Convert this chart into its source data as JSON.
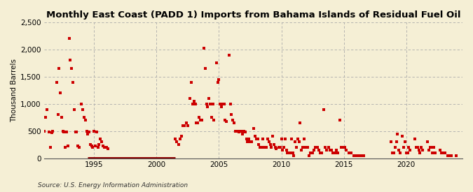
{
  "title": "Monthly East Coast (PADD 1) Imports from Bahama Islands of Residual Fuel Oil",
  "ylabel": "Thousand Barrels",
  "source": "Source: U.S. Energy Information Administration",
  "background_color": "#f5efd5",
  "plot_bg_color": "#f5efd5",
  "marker_color": "#cc0000",
  "line_color": "#8b0000",
  "ylim": [
    0,
    2500
  ],
  "yticks": [
    0,
    500,
    1000,
    1500,
    2000,
    2500
  ],
  "ytick_labels": [
    "0",
    "500",
    "1,000",
    "1,500",
    "2,000",
    "2,500"
  ],
  "xlim_start": 1991.0,
  "xlim_end": 2024.5,
  "xticks": [
    1995,
    2000,
    2005,
    2010,
    2015,
    2020
  ],
  "zero_line_x_start": 1994.5,
  "zero_line_x_end": 2001.5,
  "data": [
    [
      1991.0,
      500
    ],
    [
      1991.1,
      750
    ],
    [
      1991.2,
      900
    ],
    [
      1991.4,
      480
    ],
    [
      1991.5,
      200
    ],
    [
      1991.6,
      470
    ],
    [
      1991.7,
      500
    ],
    [
      1992.0,
      1400
    ],
    [
      1992.1,
      800
    ],
    [
      1992.2,
      1650
    ],
    [
      1992.3,
      1200
    ],
    [
      1992.4,
      750
    ],
    [
      1992.5,
      500
    ],
    [
      1992.6,
      480
    ],
    [
      1992.7,
      200
    ],
    [
      1992.8,
      480
    ],
    [
      1992.9,
      220
    ],
    [
      1993.0,
      2200
    ],
    [
      1993.1,
      1800
    ],
    [
      1993.2,
      1650
    ],
    [
      1993.3,
      1400
    ],
    [
      1993.4,
      900
    ],
    [
      1993.5,
      480
    ],
    [
      1993.6,
      480
    ],
    [
      1993.7,
      230
    ],
    [
      1993.8,
      200
    ],
    [
      1994.0,
      1000
    ],
    [
      1994.1,
      900
    ],
    [
      1994.2,
      750
    ],
    [
      1994.3,
      700
    ],
    [
      1994.4,
      500
    ],
    [
      1994.5,
      450
    ],
    [
      1994.6,
      480
    ],
    [
      1994.7,
      250
    ],
    [
      1994.8,
      220
    ],
    [
      1994.9,
      200
    ],
    [
      1995.0,
      500
    ],
    [
      1995.1,
      230
    ],
    [
      1995.2,
      480
    ],
    [
      1995.3,
      200
    ],
    [
      1995.4,
      250
    ],
    [
      1995.5,
      350
    ],
    [
      1995.6,
      300
    ],
    [
      1995.7,
      220
    ],
    [
      1995.8,
      200
    ],
    [
      1995.9,
      200
    ],
    [
      1996.0,
      200
    ],
    [
      1996.1,
      180
    ],
    [
      2001.5,
      350
    ],
    [
      2001.6,
      300
    ],
    [
      2001.8,
      250
    ],
    [
      2001.9,
      350
    ],
    [
      2002.0,
      400
    ],
    [
      2002.1,
      600
    ],
    [
      2002.2,
      600
    ],
    [
      2002.4,
      650
    ],
    [
      2002.5,
      600
    ],
    [
      2002.7,
      1100
    ],
    [
      2002.8,
      1400
    ],
    [
      2002.9,
      1000
    ],
    [
      2003.0,
      1050
    ],
    [
      2003.1,
      1000
    ],
    [
      2003.2,
      650
    ],
    [
      2003.3,
      650
    ],
    [
      2003.4,
      750
    ],
    [
      2003.5,
      700
    ],
    [
      2003.6,
      700
    ],
    [
      2003.8,
      2020
    ],
    [
      2003.9,
      1650
    ],
    [
      2004.0,
      1000
    ],
    [
      2004.1,
      950
    ],
    [
      2004.2,
      1100
    ],
    [
      2004.3,
      1000
    ],
    [
      2004.4,
      750
    ],
    [
      2004.5,
      1000
    ],
    [
      2004.6,
      700
    ],
    [
      2004.8,
      1750
    ],
    [
      2004.9,
      1400
    ],
    [
      2005.0,
      1450
    ],
    [
      2005.1,
      1000
    ],
    [
      2005.2,
      950
    ],
    [
      2005.3,
      1000
    ],
    [
      2005.4,
      1000
    ],
    [
      2005.5,
      700
    ],
    [
      2005.6,
      680
    ],
    [
      2005.8,
      1900
    ],
    [
      2005.9,
      1000
    ],
    [
      2006.0,
      800
    ],
    [
      2006.1,
      700
    ],
    [
      2006.2,
      650
    ],
    [
      2006.3,
      500
    ],
    [
      2006.4,
      500
    ],
    [
      2006.5,
      500
    ],
    [
      2006.6,
      480
    ],
    [
      2006.7,
      500
    ],
    [
      2006.8,
      500
    ],
    [
      2006.9,
      450
    ],
    [
      2007.0,
      500
    ],
    [
      2007.1,
      480
    ],
    [
      2007.2,
      350
    ],
    [
      2007.3,
      300
    ],
    [
      2007.4,
      350
    ],
    [
      2007.5,
      300
    ],
    [
      2007.6,
      300
    ],
    [
      2007.8,
      550
    ],
    [
      2007.9,
      400
    ],
    [
      2008.0,
      350
    ],
    [
      2008.1,
      350
    ],
    [
      2008.2,
      250
    ],
    [
      2008.3,
      200
    ],
    [
      2008.4,
      200
    ],
    [
      2008.5,
      350
    ],
    [
      2008.6,
      200
    ],
    [
      2008.8,
      200
    ],
    [
      2008.9,
      350
    ],
    [
      2009.0,
      300
    ],
    [
      2009.1,
      250
    ],
    [
      2009.2,
      200
    ],
    [
      2009.3,
      400
    ],
    [
      2009.4,
      250
    ],
    [
      2009.5,
      200
    ],
    [
      2009.6,
      180
    ],
    [
      2009.8,
      200
    ],
    [
      2009.9,
      200
    ],
    [
      2010.0,
      350
    ],
    [
      2010.1,
      150
    ],
    [
      2010.2,
      200
    ],
    [
      2010.3,
      350
    ],
    [
      2010.4,
      150
    ],
    [
      2010.5,
      100
    ],
    [
      2010.6,
      100
    ],
    [
      2010.7,
      100
    ],
    [
      2010.8,
      350
    ],
    [
      2010.9,
      100
    ],
    [
      2011.0,
      50
    ],
    [
      2011.1,
      300
    ],
    [
      2011.2,
      200
    ],
    [
      2011.3,
      350
    ],
    [
      2011.4,
      300
    ],
    [
      2011.5,
      650
    ],
    [
      2011.6,
      150
    ],
    [
      2011.7,
      200
    ],
    [
      2011.8,
      350
    ],
    [
      2011.9,
      200
    ],
    [
      2012.0,
      200
    ],
    [
      2012.1,
      200
    ],
    [
      2012.2,
      50
    ],
    [
      2012.3,
      100
    ],
    [
      2012.4,
      100
    ],
    [
      2012.5,
      100
    ],
    [
      2012.6,
      150
    ],
    [
      2012.7,
      200
    ],
    [
      2012.8,
      200
    ],
    [
      2012.9,
      200
    ],
    [
      2013.0,
      150
    ],
    [
      2013.1,
      100
    ],
    [
      2013.2,
      100
    ],
    [
      2013.4,
      900
    ],
    [
      2013.5,
      200
    ],
    [
      2013.6,
      150
    ],
    [
      2013.8,
      200
    ],
    [
      2013.9,
      150
    ],
    [
      2014.0,
      150
    ],
    [
      2014.1,
      100
    ],
    [
      2014.2,
      100
    ],
    [
      2014.3,
      100
    ],
    [
      2014.4,
      150
    ],
    [
      2014.5,
      100
    ],
    [
      2014.7,
      700
    ],
    [
      2014.8,
      200
    ],
    [
      2014.9,
      200
    ],
    [
      2015.1,
      200
    ],
    [
      2015.2,
      150
    ],
    [
      2015.4,
      100
    ],
    [
      2015.5,
      100
    ],
    [
      2015.6,
      100
    ],
    [
      2015.8,
      50
    ],
    [
      2015.9,
      50
    ],
    [
      2016.0,
      50
    ],
    [
      2016.1,
      50
    ],
    [
      2016.3,
      50
    ],
    [
      2016.4,
      50
    ],
    [
      2016.6,
      50
    ],
    [
      2018.8,
      300
    ],
    [
      2018.9,
      100
    ],
    [
      2019.0,
      100
    ],
    [
      2019.1,
      200
    ],
    [
      2019.2,
      300
    ],
    [
      2019.3,
      450
    ],
    [
      2019.4,
      150
    ],
    [
      2019.5,
      100
    ],
    [
      2019.7,
      400
    ],
    [
      2019.8,
      200
    ],
    [
      2019.9,
      300
    ],
    [
      2020.0,
      100
    ],
    [
      2020.1,
      100
    ],
    [
      2020.2,
      200
    ],
    [
      2020.3,
      150
    ],
    [
      2020.7,
      350
    ],
    [
      2020.8,
      200
    ],
    [
      2020.9,
      200
    ],
    [
      2021.0,
      150
    ],
    [
      2021.1,
      100
    ],
    [
      2021.2,
      200
    ],
    [
      2021.3,
      150
    ],
    [
      2021.7,
      300
    ],
    [
      2021.8,
      150
    ],
    [
      2021.9,
      200
    ],
    [
      2022.0,
      200
    ],
    [
      2022.1,
      100
    ],
    [
      2022.2,
      200
    ],
    [
      2022.3,
      100
    ],
    [
      2022.7,
      150
    ],
    [
      2022.8,
      100
    ],
    [
      2022.9,
      100
    ],
    [
      2023.0,
      100
    ],
    [
      2023.1,
      100
    ],
    [
      2023.3,
      50
    ],
    [
      2023.5,
      50
    ],
    [
      2023.6,
      50
    ],
    [
      2024.0,
      50
    ]
  ]
}
